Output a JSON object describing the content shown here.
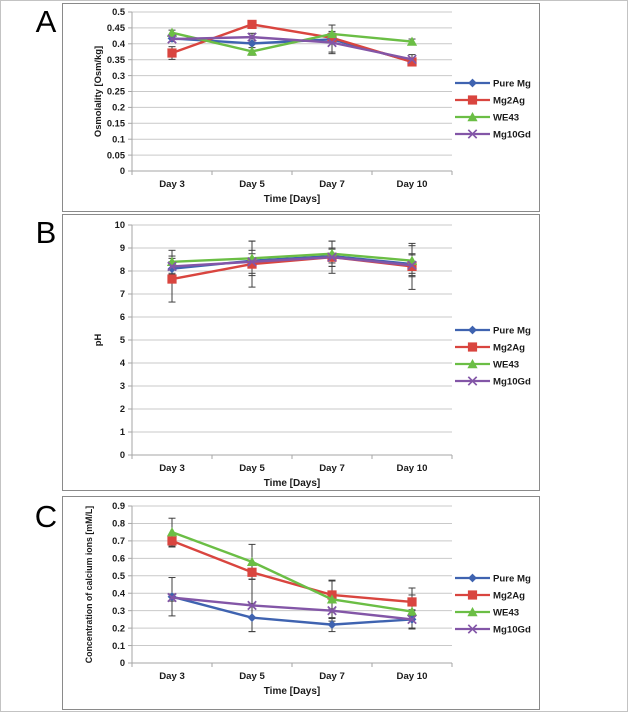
{
  "panels": [
    {
      "label": "A"
    },
    {
      "label": "B"
    },
    {
      "label": "C"
    }
  ],
  "chart_data": [
    {
      "id": "A",
      "type": "line",
      "title": "",
      "categories": [
        "Day 3",
        "Day 5",
        "Day 7",
        "Day 10"
      ],
      "xlabel": "Time [Days]",
      "ylabel": "Osmolality [Osm/kg]",
      "ylim": [
        0,
        0.5
      ],
      "ytick_labels": [
        "0",
        "0.05",
        "0.1",
        "0.15",
        "0.2",
        "0.25",
        "0.3",
        "0.35",
        "0.4",
        "0.45",
        "0.5"
      ],
      "grid": true,
      "legend_position": "right",
      "error_bars": true,
      "series": [
        {
          "name": "Pure Mg",
          "marker": "diamond",
          "color": "#3F63B0",
          "values": [
            0.417,
            0.401,
            0.414,
            0.345
          ],
          "errors": [
            0.01,
            0,
            0.045,
            0
          ]
        },
        {
          "name": "Mg2Ag",
          "marker": "square",
          "color": "#D9453F",
          "values": [
            0.371,
            0.461,
            0.419,
            0.343
          ],
          "errors": [
            0.02,
            0.01,
            0,
            0.012
          ]
        },
        {
          "name": "WE43",
          "marker": "triangle",
          "color": "#6BBE45",
          "values": [
            0.435,
            0.376,
            0.431,
            0.407
          ],
          "errors": [
            0.008,
            0.012,
            0.008,
            0.008
          ]
        },
        {
          "name": "Mg10Gd",
          "marker": "x",
          "color": "#8356A7",
          "values": [
            0.415,
            0.421,
            0.404,
            0.351
          ],
          "errors": [
            0,
            0.012,
            0.03,
            0.015
          ]
        }
      ]
    },
    {
      "id": "B",
      "type": "line",
      "title": "",
      "categories": [
        "Day 3",
        "Day 5",
        "Day 7",
        "Day 10"
      ],
      "xlabel": "Time [Days]",
      "ylabel": "pH",
      "ylim": [
        0,
        10
      ],
      "ytick_labels": [
        "0",
        "1",
        "2",
        "3",
        "4",
        "5",
        "6",
        "7",
        "8",
        "9",
        "10"
      ],
      "grid": true,
      "legend_position": "right",
      "error_bars": true,
      "series": [
        {
          "name": "Pure Mg",
          "marker": "diamond",
          "color": "#3F63B0",
          "values": [
            8.1,
            8.45,
            8.65,
            8.3
          ],
          "errors": [
            0.3,
            0.3,
            0.3,
            0.4
          ]
        },
        {
          "name": "Mg2Ag",
          "marker": "square",
          "color": "#D9453F",
          "values": [
            7.65,
            8.3,
            8.6,
            8.2
          ],
          "errors": [
            1.0,
            1.0,
            0.7,
            1.0
          ]
        },
        {
          "name": "WE43",
          "marker": "triangle",
          "color": "#6BBE45",
          "values": [
            8.4,
            8.55,
            8.75,
            8.45
          ],
          "errors": [
            0.5,
            0.75,
            0.55,
            0.65
          ]
        },
        {
          "name": "Mg10Gd",
          "marker": "x",
          "color": "#8356A7",
          "values": [
            8.2,
            8.4,
            8.6,
            8.25
          ],
          "errors": [
            0.35,
            0.5,
            0.4,
            0.5
          ]
        }
      ]
    },
    {
      "id": "C",
      "type": "line",
      "title": "",
      "categories": [
        "Day 3",
        "Day 5",
        "Day 7",
        "Day 10"
      ],
      "xlabel": "Time [Days]",
      "ylabel": "Concentration of calcium ions [mM/L]",
      "ylim": [
        0,
        0.9
      ],
      "ytick_labels": [
        "0",
        "0.1",
        "0.2",
        "0.3",
        "0.4",
        "0.5",
        "0.6",
        "0.7",
        "0.8",
        "0.9"
      ],
      "grid": true,
      "legend_position": "right",
      "error_bars": true,
      "series": [
        {
          "name": "Pure Mg",
          "marker": "diamond",
          "color": "#3F63B0",
          "values": [
            0.38,
            0.26,
            0.22,
            0.25
          ],
          "errors": [
            0.11,
            0.08,
            0.04,
            0.055
          ]
        },
        {
          "name": "Mg2Ag",
          "marker": "square",
          "color": "#D9453F",
          "values": [
            0.7,
            0.52,
            0.39,
            0.35
          ],
          "errors": [
            0.035,
            0.04,
            0.08,
            0.08
          ]
        },
        {
          "name": "WE43",
          "marker": "triangle",
          "color": "#6BBE45",
          "values": [
            0.75,
            0.58,
            0.365,
            0.295
          ],
          "errors": [
            0.08,
            0.1,
            0.11,
            0.095
          ]
        },
        {
          "name": "Mg10Gd",
          "marker": "x",
          "color": "#8356A7",
          "values": [
            0.375,
            0.33,
            0.3,
            0.25
          ],
          "errors": [
            0.02,
            0.15,
            0.06,
            0.05
          ]
        }
      ]
    }
  ]
}
